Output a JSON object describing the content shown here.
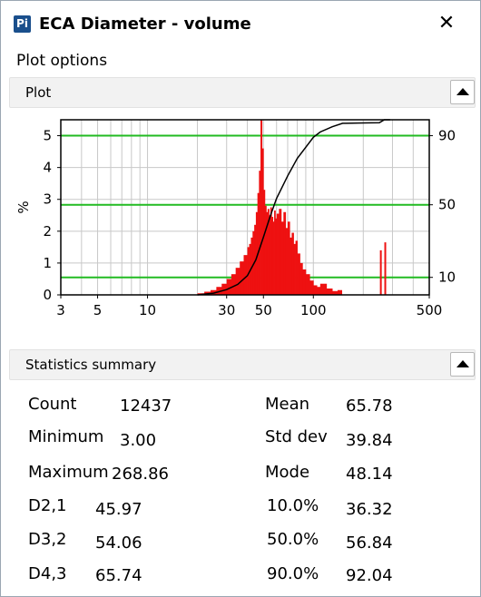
{
  "window": {
    "app_icon": "Pi",
    "title": "ECA Diameter - volume",
    "minimize_label": "—",
    "close_label": "✕"
  },
  "plot_options_label": "Plot options",
  "plot_section": {
    "label": "Plot",
    "icon": "collapse-up-icon"
  },
  "stats_section": {
    "label": "Statistics summary",
    "icon": "collapse-up-icon"
  },
  "chart_data": {
    "type": "bar",
    "title": "",
    "xlabel": "",
    "ylabel": "%",
    "x_scale": "log",
    "xlim": [
      3,
      500
    ],
    "ylim": [
      0,
      5.5
    ],
    "x_ticks": [
      3,
      5,
      10,
      30,
      50,
      100,
      500
    ],
    "y_ticks": [
      0,
      1,
      2,
      3,
      4,
      5
    ],
    "y2_ticks": [
      10,
      50,
      90
    ],
    "y2lim": [
      0,
      100
    ],
    "grid": true,
    "legend": "none",
    "colors": {
      "bars": "#ee1111",
      "cumulative": "#000000",
      "reference_lines": "#22bb22",
      "grid": "#c8c8c8"
    },
    "reference_lines": {
      "y": [
        0.55,
        2.83,
        5.0
      ],
      "labels": [
        "10",
        "50",
        "90"
      ]
    },
    "histogram": {
      "x": [
        20,
        22,
        24,
        26,
        28,
        30,
        32,
        34,
        36,
        38,
        40,
        41,
        42,
        43,
        44,
        45,
        46,
        47,
        48,
        49,
        50,
        51,
        52,
        53,
        54,
        55,
        56,
        57,
        58,
        59,
        60,
        62,
        64,
        66,
        68,
        70,
        72,
        74,
        76,
        78,
        80,
        83,
        86,
        90,
        95,
        100,
        105,
        110,
        120,
        130,
        140
      ],
      "y": [
        0.05,
        0.1,
        0.15,
        0.25,
        0.35,
        0.5,
        0.65,
        0.85,
        1.05,
        1.25,
        1.5,
        1.6,
        1.8,
        2.0,
        2.2,
        2.6,
        3.2,
        3.9,
        5.5,
        4.6,
        3.3,
        2.8,
        2.6,
        2.7,
        2.5,
        2.75,
        2.45,
        2.3,
        2.65,
        2.4,
        2.55,
        2.7,
        2.3,
        2.6,
        2.1,
        2.3,
        1.8,
        1.95,
        1.6,
        1.7,
        1.3,
        1.0,
        0.8,
        0.65,
        0.45,
        0.3,
        0.25,
        0.35,
        0.2,
        0.12,
        0.15
      ]
    },
    "outliers": {
      "x": [
        252,
        268
      ],
      "y": [
        1.4,
        1.65
      ]
    },
    "cumulative": {
      "x": [
        20,
        25,
        30,
        35,
        40,
        45,
        50,
        55,
        60,
        70,
        80,
        100,
        110,
        130,
        150,
        200,
        250,
        268,
        290
      ],
      "y": [
        0,
        1,
        3,
        6,
        11,
        20,
        33,
        45,
        55,
        68,
        78,
        90,
        93,
        96,
        98,
        98.2,
        98.3,
        100,
        100
      ]
    }
  },
  "stats": [
    {
      "label": "Count",
      "value": "12437"
    },
    {
      "label": "Mean",
      "value": "65.78"
    },
    {
      "label": "Minimum",
      "value": "3.00"
    },
    {
      "label": "Std dev",
      "value": "39.84"
    },
    {
      "label": "Maximum",
      "value": "268.86"
    },
    {
      "label": "Mode",
      "value": "48.14"
    },
    {
      "label": "D2,1",
      "value": "45.97"
    },
    {
      "label": "10.0%",
      "value": "36.32"
    },
    {
      "label": "D3,2",
      "value": "54.06"
    },
    {
      "label": "50.0%",
      "value": "56.84"
    },
    {
      "label": "D4,3",
      "value": "65.74"
    },
    {
      "label": "90.0%",
      "value": "92.04"
    }
  ]
}
